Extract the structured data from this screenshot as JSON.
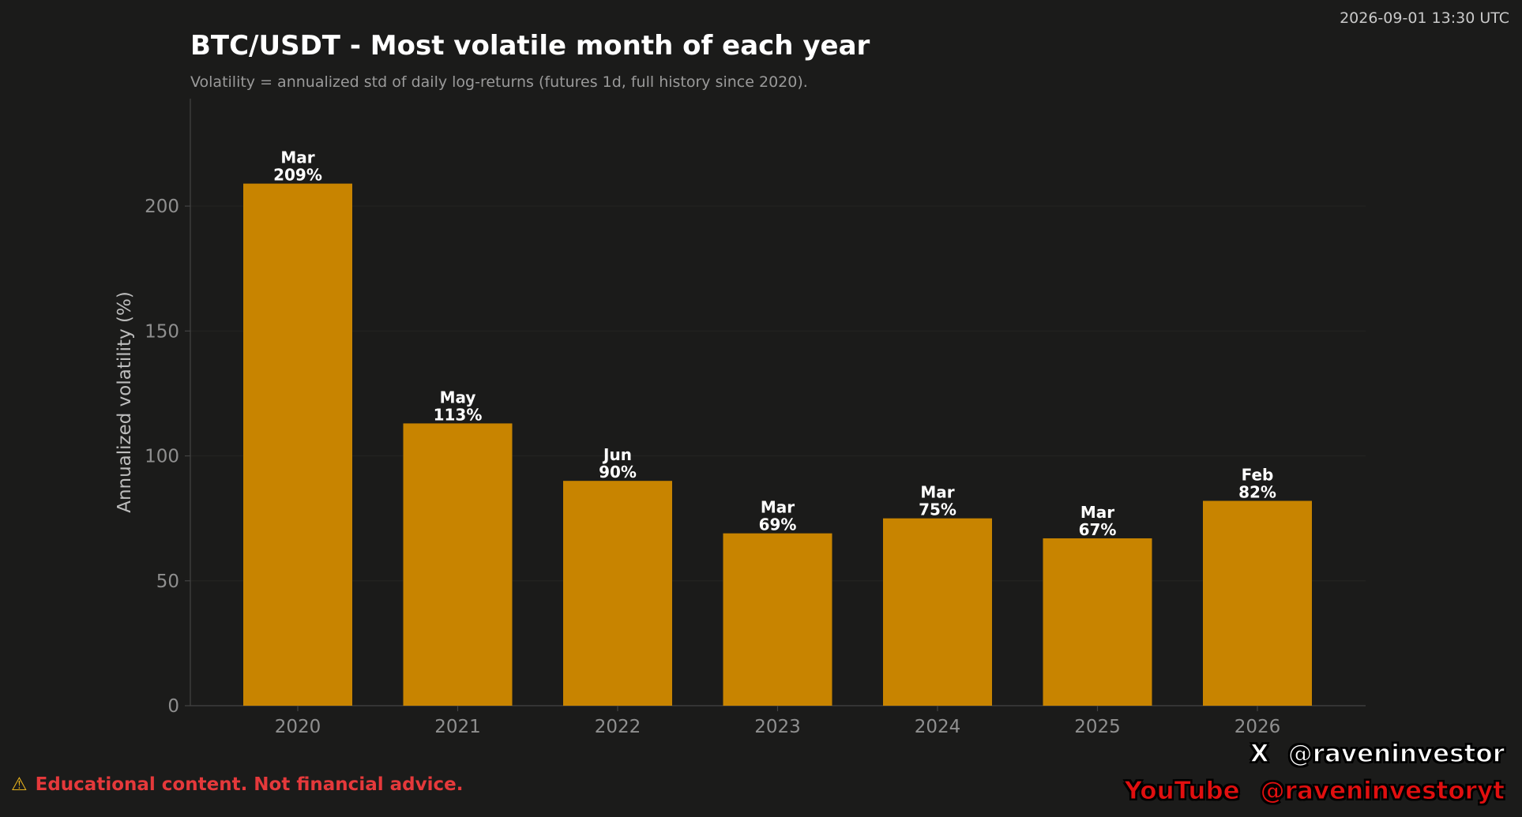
{
  "timestamp": "2026-09-01 13:30 UTC",
  "disclaimer": {
    "icon": "warning-icon",
    "icon_glyph": "⚠",
    "text": "Educational content. Not financial advice."
  },
  "social": {
    "x_icon": "x-logo-icon",
    "x_glyph": "𝕏",
    "x_handle": "@raveninvestor",
    "youtube_label": "YouTube",
    "youtube_handle": "@raveninvestoryt"
  },
  "colors": {
    "background": "#1b1b1a",
    "bar": "#c88400",
    "gridline": "#232322",
    "axis": "#444444",
    "tick_text": "#8f8f8f",
    "label_text": "#ffffff"
  },
  "chart_data": {
    "type": "bar",
    "title": "BTC/USDT - Most volatile month of each year",
    "subtitle": "Volatility = annualized std of daily log-returns (futures 1d, full history since 2020).",
    "xlabel": "",
    "ylabel": "Annualized volatility (%)",
    "ylim": [
      0,
      243
    ],
    "yticks": [
      0,
      50,
      100,
      150,
      200
    ],
    "grid": true,
    "categories": [
      "2020",
      "2021",
      "2022",
      "2023",
      "2024",
      "2025",
      "2026"
    ],
    "values": [
      209,
      113,
      90,
      69,
      75,
      67,
      82
    ],
    "months": [
      "Mar",
      "May",
      "Jun",
      "Mar",
      "Mar",
      "Mar",
      "Feb"
    ],
    "data_labels": [
      "209%",
      "113%",
      "90%",
      "69%",
      "75%",
      "67%",
      "82%"
    ]
  }
}
